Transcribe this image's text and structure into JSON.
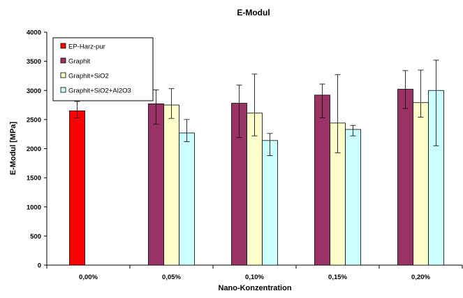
{
  "chart_data": {
    "type": "bar",
    "title": "E-Modul",
    "xlabel": "Nano-Konzentration",
    "ylabel": "E-Modul [MPa]",
    "ylim": [
      0,
      4000
    ],
    "ytick_step": 500,
    "yticks": [
      "0",
      "500",
      "1000",
      "1500",
      "2000",
      "2500",
      "3000",
      "3500",
      "4000"
    ],
    "categories": [
      "0,00%",
      "0,05%",
      "0,10%",
      "0,15%",
      "0,20%"
    ],
    "grid": false,
    "legend_position": "top-left",
    "series": [
      {
        "name": "EP-Harz-pur",
        "color": "#ff0000",
        "values": [
          2650,
          null,
          null,
          null,
          null
        ],
        "err_low": [
          2530,
          null,
          null,
          null,
          null
        ],
        "err_high": [
          2810,
          null,
          null,
          null,
          null
        ]
      },
      {
        "name": "Graphit",
        "color": "#993366",
        "values": [
          null,
          2770,
          2780,
          2920,
          3020
        ],
        "err_low": [
          null,
          2420,
          2190,
          2530,
          2690
        ],
        "err_high": [
          null,
          3010,
          3090,
          3110,
          3340
        ]
      },
      {
        "name": "Graphit+SiO2",
        "color": "#ffffcc",
        "values": [
          null,
          2750,
          2610,
          2440,
          2790
        ],
        "err_low": [
          null,
          2520,
          2220,
          1930,
          2540
        ],
        "err_high": [
          null,
          3030,
          3280,
          3270,
          3350
        ]
      },
      {
        "name": "Graphit+SiO2+Al2O3",
        "color": "#ccffff",
        "values": [
          null,
          2270,
          2140,
          2330,
          3000
        ],
        "err_low": [
          null,
          2120,
          1880,
          2220,
          2050
        ],
        "err_high": [
          null,
          2500,
          2260,
          2400,
          3520
        ]
      }
    ]
  }
}
